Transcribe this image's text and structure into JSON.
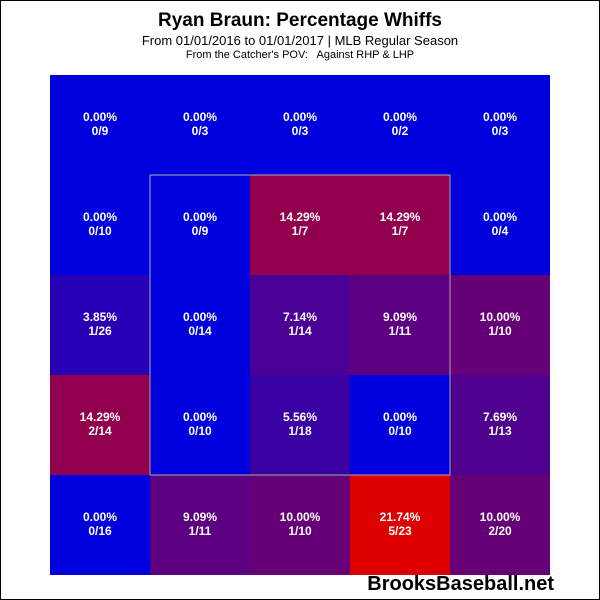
{
  "chart_data": {
    "type": "heatmap",
    "title": "Ryan Braun: Percentage Whiffs",
    "subtitle": "From 01/01/2016 to 01/01/2017 | MLB Regular Season",
    "subtitle2": "From the Catcher's POV:   Against RHP & LHP",
    "rows": 5,
    "cols": 5,
    "strike_zone": {
      "rows": [
        1,
        3
      ],
      "cols": [
        1,
        3
      ]
    },
    "cells": [
      [
        {
          "pct": "0.00%",
          "count": "0/9",
          "value": 0.0
        },
        {
          "pct": "0.00%",
          "count": "0/3",
          "value": 0.0
        },
        {
          "pct": "0.00%",
          "count": "0/3",
          "value": 0.0
        },
        {
          "pct": "0.00%",
          "count": "0/2",
          "value": 0.0
        },
        {
          "pct": "0.00%",
          "count": "0/3",
          "value": 0.0
        }
      ],
      [
        {
          "pct": "0.00%",
          "count": "0/10",
          "value": 0.0
        },
        {
          "pct": "0.00%",
          "count": "0/9",
          "value": 0.0
        },
        {
          "pct": "14.29%",
          "count": "1/7",
          "value": 14.29
        },
        {
          "pct": "14.29%",
          "count": "1/7",
          "value": 14.29
        },
        {
          "pct": "0.00%",
          "count": "0/4",
          "value": 0.0
        }
      ],
      [
        {
          "pct": "3.85%",
          "count": "1/26",
          "value": 3.85
        },
        {
          "pct": "0.00%",
          "count": "0/14",
          "value": 0.0
        },
        {
          "pct": "7.14%",
          "count": "1/14",
          "value": 7.14
        },
        {
          "pct": "9.09%",
          "count": "1/11",
          "value": 9.09
        },
        {
          "pct": "10.00%",
          "count": "1/10",
          "value": 10.0
        }
      ],
      [
        {
          "pct": "14.29%",
          "count": "2/14",
          "value": 14.29
        },
        {
          "pct": "0.00%",
          "count": "0/10",
          "value": 0.0
        },
        {
          "pct": "5.56%",
          "count": "1/18",
          "value": 5.56
        },
        {
          "pct": "0.00%",
          "count": "0/10",
          "value": 0.0
        },
        {
          "pct": "7.69%",
          "count": "1/13",
          "value": 7.69
        }
      ],
      [
        {
          "pct": "0.00%",
          "count": "0/16",
          "value": 0.0
        },
        {
          "pct": "9.09%",
          "count": "1/11",
          "value": 9.09
        },
        {
          "pct": "10.00%",
          "count": "1/10",
          "value": 10.0
        },
        {
          "pct": "21.74%",
          "count": "5/23",
          "value": 21.74
        },
        {
          "pct": "10.00%",
          "count": "2/20",
          "value": 10.0
        }
      ]
    ],
    "colors": {
      "low": "#0000dd",
      "high": "#dd0000",
      "zone_outline": "#aaaaaa"
    }
  },
  "watermark": "BrooksBaseball.net"
}
